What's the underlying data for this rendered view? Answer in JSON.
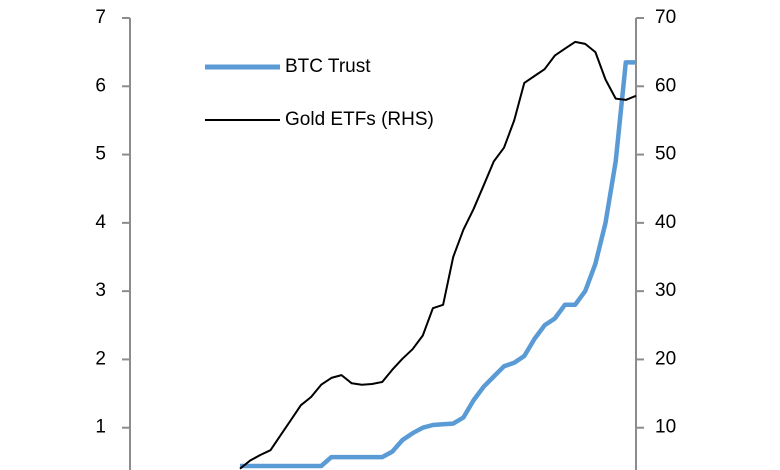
{
  "chart_data": {
    "type": "line",
    "series": [
      {
        "name": "BTC Trust",
        "color": "#5b9bd5",
        "axis": "y",
        "values": [
          0.44,
          0.44,
          0.44,
          0.44,
          0.44,
          0.44,
          0.44,
          0.44,
          0.44,
          0.57,
          0.57,
          0.57,
          0.57,
          0.57,
          0.57,
          0.65,
          0.82,
          0.92,
          1.0,
          1.04,
          1.05,
          1.06,
          1.15,
          1.4,
          1.6,
          1.75,
          1.9,
          1.95,
          2.05,
          2.3,
          2.5,
          2.6,
          2.8,
          2.8,
          3.0,
          3.4,
          4.0,
          4.9,
          6.35,
          6.35
        ]
      },
      {
        "name": "Gold ETFs (RHS)",
        "color": "#000000",
        "axis": "y2",
        "values": [
          4,
          5.2,
          6.0,
          6.7,
          8.9,
          11.1,
          13.3,
          14.5,
          16.3,
          17.3,
          17.7,
          16.5,
          16.3,
          16.4,
          16.7,
          18.5,
          20.1,
          21.5,
          23.5,
          27.5,
          28,
          35,
          39,
          42,
          45.5,
          49,
          51,
          55,
          60.5,
          61.5,
          62.5,
          64.5,
          65.5,
          66.5,
          66.2,
          65,
          61,
          58.2,
          58,
          58.6
        ]
      }
    ],
    "ylim": [
      0,
      7
    ],
    "yticks": [
      1,
      2,
      3,
      4,
      5,
      6,
      7
    ],
    "y2lim": [
      0,
      70
    ],
    "y2ticks": [
      10,
      20,
      30,
      40,
      50,
      60,
      70
    ],
    "legend": "upper left",
    "grid": false
  }
}
